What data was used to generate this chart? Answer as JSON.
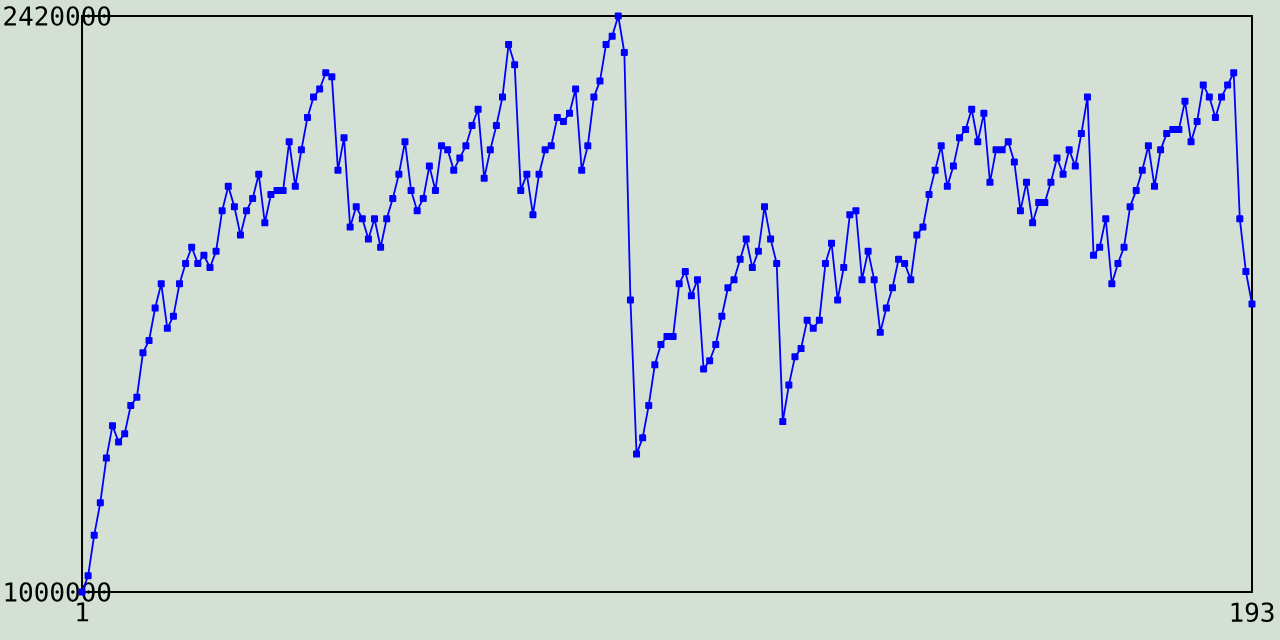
{
  "chart_data": {
    "type": "line",
    "x": [
      1,
      2,
      3,
      4,
      5,
      6,
      7,
      8,
      9,
      10,
      11,
      12,
      13,
      14,
      15,
      16,
      17,
      18,
      19,
      20,
      21,
      22,
      23,
      24,
      25,
      26,
      27,
      28,
      29,
      30,
      31,
      32,
      33,
      34,
      35,
      36,
      37,
      38,
      39,
      40,
      41,
      42,
      43,
      44,
      45,
      46,
      47,
      48,
      49,
      50,
      51,
      52,
      53,
      54,
      55,
      56,
      57,
      58,
      59,
      60,
      61,
      62,
      63,
      64,
      65,
      66,
      67,
      68,
      69,
      70,
      71,
      72,
      73,
      74,
      75,
      76,
      77,
      78,
      79,
      80,
      81,
      82,
      83,
      84,
      85,
      86,
      87,
      88,
      89,
      90,
      91,
      92,
      93,
      94,
      95,
      96,
      97,
      98,
      99,
      100,
      101,
      102,
      103,
      104,
      105,
      106,
      107,
      108,
      109,
      110,
      111,
      112,
      113,
      114,
      115,
      116,
      117,
      118,
      119,
      120,
      121,
      122,
      123,
      124,
      125,
      126,
      127,
      128,
      129,
      130,
      131,
      132,
      133,
      134,
      135,
      136,
      137,
      138,
      139,
      140,
      141,
      142,
      143,
      144,
      145,
      146,
      147,
      148,
      149,
      150,
      151,
      152,
      153,
      154,
      155,
      156,
      157,
      158,
      159,
      160,
      161,
      162,
      163,
      164,
      165,
      166,
      167,
      168,
      169,
      170,
      171,
      172,
      173,
      174,
      175,
      176,
      177,
      178,
      179,
      180,
      181,
      182,
      183,
      184,
      185,
      186,
      187,
      188,
      189,
      190,
      191,
      192,
      193
    ],
    "values": [
      1000000,
      1040000,
      1140000,
      1220000,
      1330000,
      1410000,
      1370000,
      1390000,
      1460000,
      1480000,
      1590000,
      1620000,
      1700000,
      1760000,
      1650000,
      1680000,
      1760000,
      1810000,
      1850000,
      1810000,
      1830000,
      1800000,
      1840000,
      1940000,
      2000000,
      1950000,
      1880000,
      1940000,
      1970000,
      2030000,
      1910000,
      1980000,
      1990000,
      1990000,
      2110000,
      2000000,
      2090000,
      2170000,
      2220000,
      2240000,
      2280000,
      2270000,
      2040000,
      2120000,
      1900000,
      1950000,
      1920000,
      1870000,
      1920000,
      1850000,
      1920000,
      1970000,
      2030000,
      2110000,
      1990000,
      1940000,
      1970000,
      2050000,
      1990000,
      2100000,
      2090000,
      2040000,
      2070000,
      2100000,
      2150000,
      2190000,
      2020000,
      2090000,
      2150000,
      2220000,
      2350000,
      2300000,
      1990000,
      2030000,
      1930000,
      2030000,
      2090000,
      2100000,
      2170000,
      2160000,
      2180000,
      2240000,
      2040000,
      2100000,
      2220000,
      2260000,
      2350000,
      2370000,
      2420000,
      2330000,
      1720000,
      1340000,
      1380000,
      1460000,
      1560000,
      1610000,
      1630000,
      1630000,
      1760000,
      1790000,
      1730000,
      1770000,
      1550000,
      1570000,
      1610000,
      1680000,
      1750000,
      1770000,
      1820000,
      1870000,
      1800000,
      1840000,
      1950000,
      1870000,
      1810000,
      1420000,
      1510000,
      1580000,
      1600000,
      1670000,
      1650000,
      1670000,
      1810000,
      1860000,
      1720000,
      1800000,
      1930000,
      1940000,
      1770000,
      1840000,
      1770000,
      1640000,
      1700000,
      1750000,
      1820000,
      1810000,
      1770000,
      1880000,
      1900000,
      1980000,
      2040000,
      2100000,
      2000000,
      2050000,
      2120000,
      2140000,
      2190000,
      2110000,
      2180000,
      2010000,
      2090000,
      2090000,
      2110000,
      2060000,
      1940000,
      2010000,
      1910000,
      1960000,
      1960000,
      2010000,
      2070000,
      2030000,
      2090000,
      2050000,
      2130000,
      2220000,
      1830000,
      1850000,
      1920000,
      1760000,
      1810000,
      1850000,
      1950000,
      1990000,
      2040000,
      2100000,
      2000000,
      2090000,
      2130000,
      2140000,
      2140000,
      2210000,
      2110000,
      2160000,
      2250000,
      2220000,
      2170000,
      2220000,
      2250000,
      2280000,
      1920000,
      1790000,
      1710000
    ],
    "color": "#0000ff",
    "marker": "square",
    "xlim": [
      1,
      193
    ],
    "xticks": [
      1,
      193
    ],
    "ylim": [
      1000000,
      2420000
    ],
    "yticks": [
      1000000,
      2420000
    ]
  }
}
